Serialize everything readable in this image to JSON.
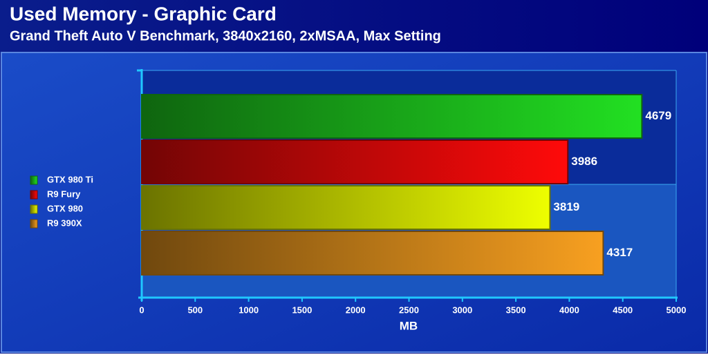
{
  "chart_data": {
    "type": "hbar",
    "title": "Used Memory - Graphic Card",
    "subtitle": "Grand Theft Auto V Benchmark, 3840x2160, 2xMSAA, Max Setting",
    "xlabel": "MB",
    "categories": [
      null
    ],
    "series": [
      {
        "name": "GTX 980 Ti",
        "color": "#22e022",
        "values": [
          4679
        ]
      },
      {
        "name": "R9 Fury",
        "color": "#ff0a0a",
        "values": [
          3986
        ]
      },
      {
        "name": "GTX 980",
        "color": "#eeff00",
        "values": [
          3819
        ]
      },
      {
        "name": "R9 390X",
        "color": "#f8a020",
        "values": [
          4317
        ]
      }
    ],
    "xlim": [
      0,
      5000
    ],
    "xticks": [
      0,
      500,
      1000,
      1500,
      2000,
      2500,
      3000,
      3500,
      4000,
      4500,
      5000
    ]
  }
}
